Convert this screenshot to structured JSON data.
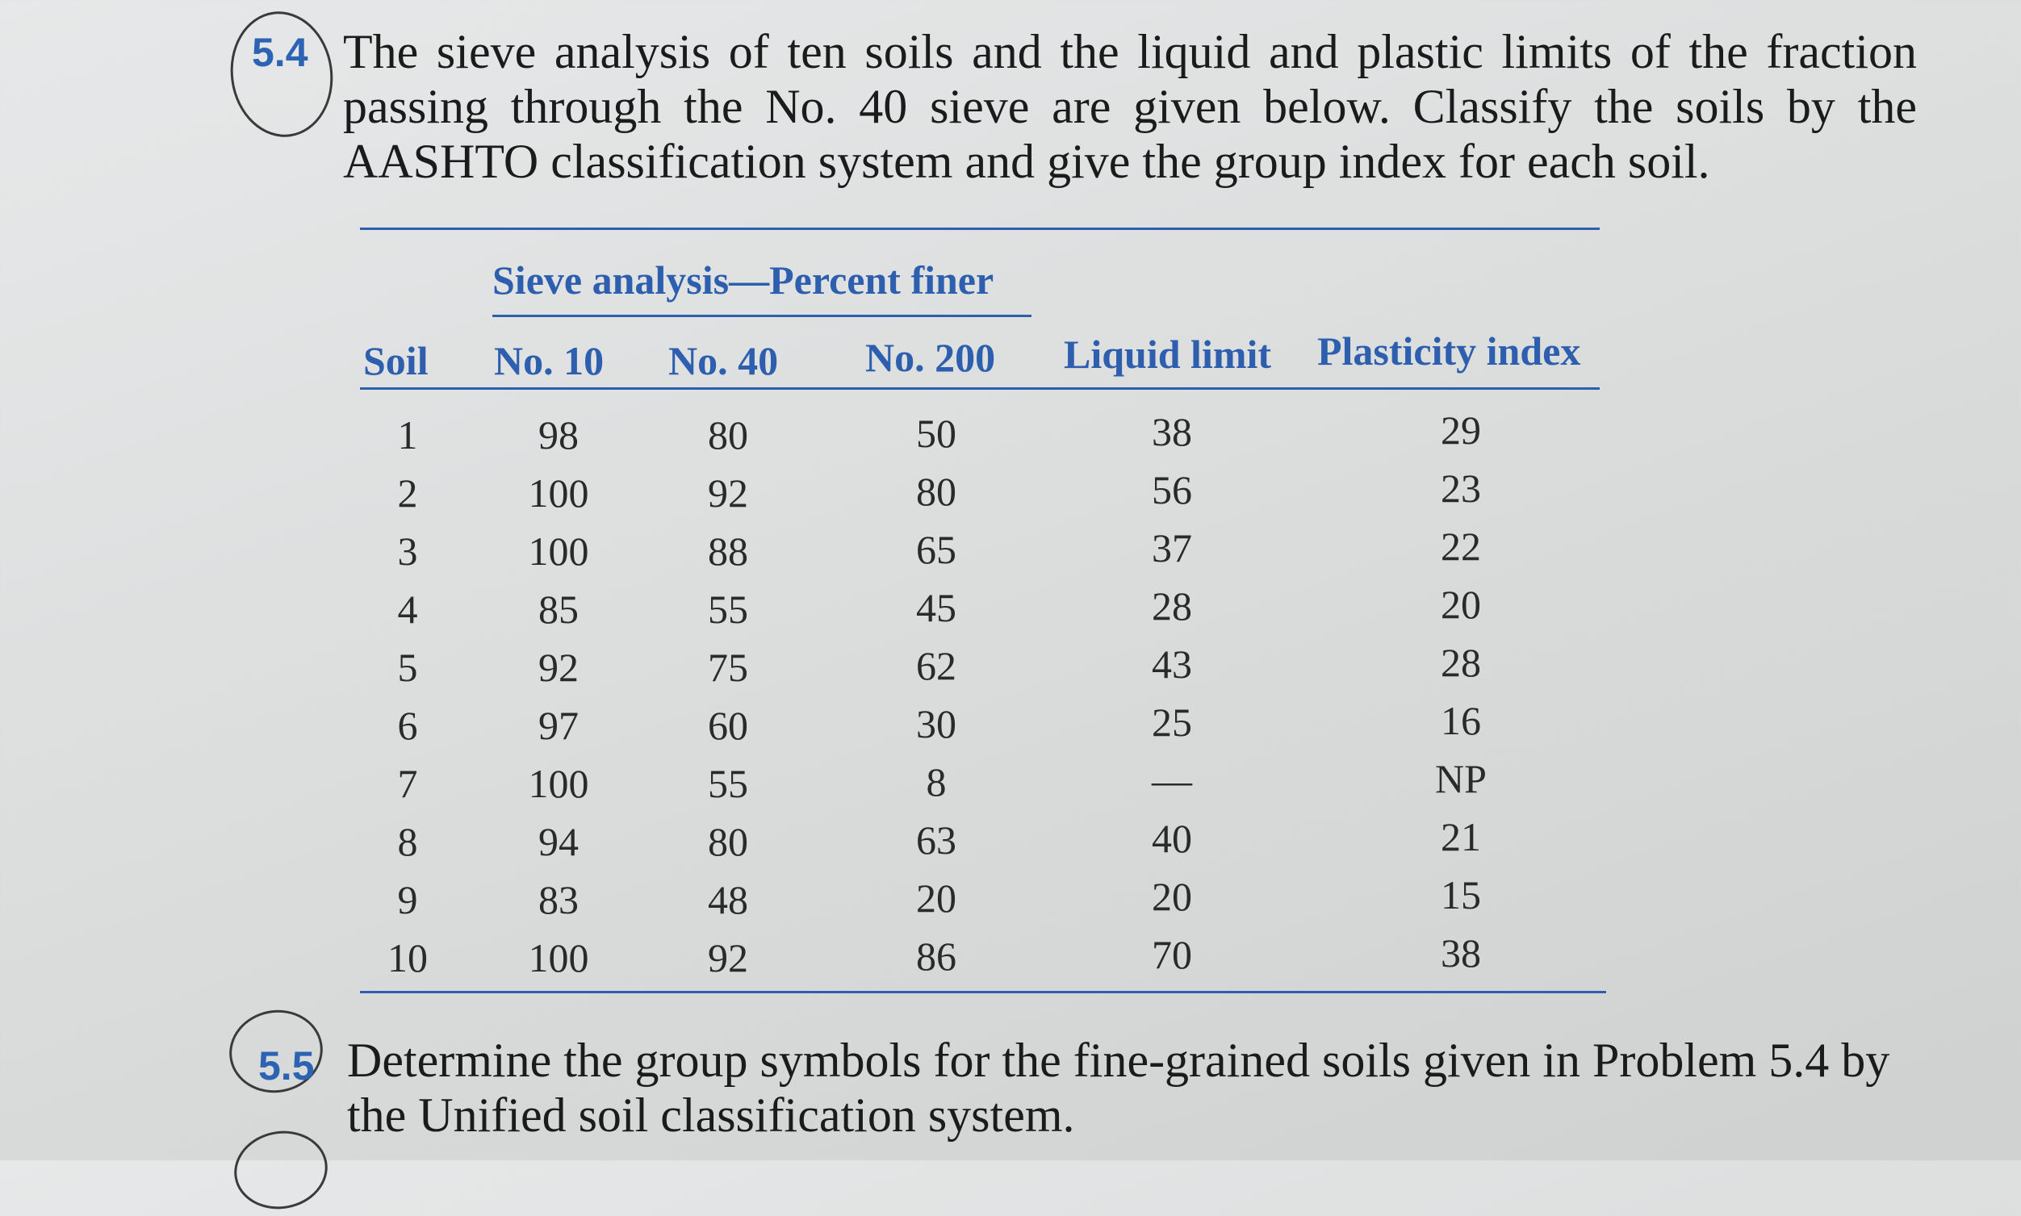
{
  "problem_5_4": {
    "number": "5.4",
    "text": "The sieve analysis of ten soils and the liquid and plastic limits of the fraction passing through the No. 40 sieve are given below. Classify the soils by the AASHTO classification system and give the group index for each soil."
  },
  "table": {
    "group_header": "Sieve analysis—Percent finer",
    "columns": [
      "Soil",
      "No. 10",
      "No. 40",
      "No. 200",
      "Liquid limit",
      "Plasticity index"
    ],
    "rows": [
      [
        "1",
        "98",
        "80",
        "50",
        "38",
        "29"
      ],
      [
        "2",
        "100",
        "92",
        "80",
        "56",
        "23"
      ],
      [
        "3",
        "100",
        "88",
        "65",
        "37",
        "22"
      ],
      [
        "4",
        "85",
        "55",
        "45",
        "28",
        "20"
      ],
      [
        "5",
        "92",
        "75",
        "62",
        "43",
        "28"
      ],
      [
        "6",
        "97",
        "60",
        "30",
        "25",
        "16"
      ],
      [
        "7",
        "100",
        "55",
        "8",
        "—",
        "NP"
      ],
      [
        "8",
        "94",
        "80",
        "63",
        "40",
        "21"
      ],
      [
        "9",
        "83",
        "48",
        "20",
        "20",
        "15"
      ],
      [
        "10",
        "100",
        "92",
        "86",
        "70",
        "38"
      ]
    ]
  },
  "problem_5_5": {
    "number": "5.5",
    "text": "Determine the group symbols for the fine-grained soils given in Problem 5.4 by the Unified soil classification system."
  },
  "colors": {
    "accent": "#2d5fae",
    "text": "#1b1b1b"
  }
}
